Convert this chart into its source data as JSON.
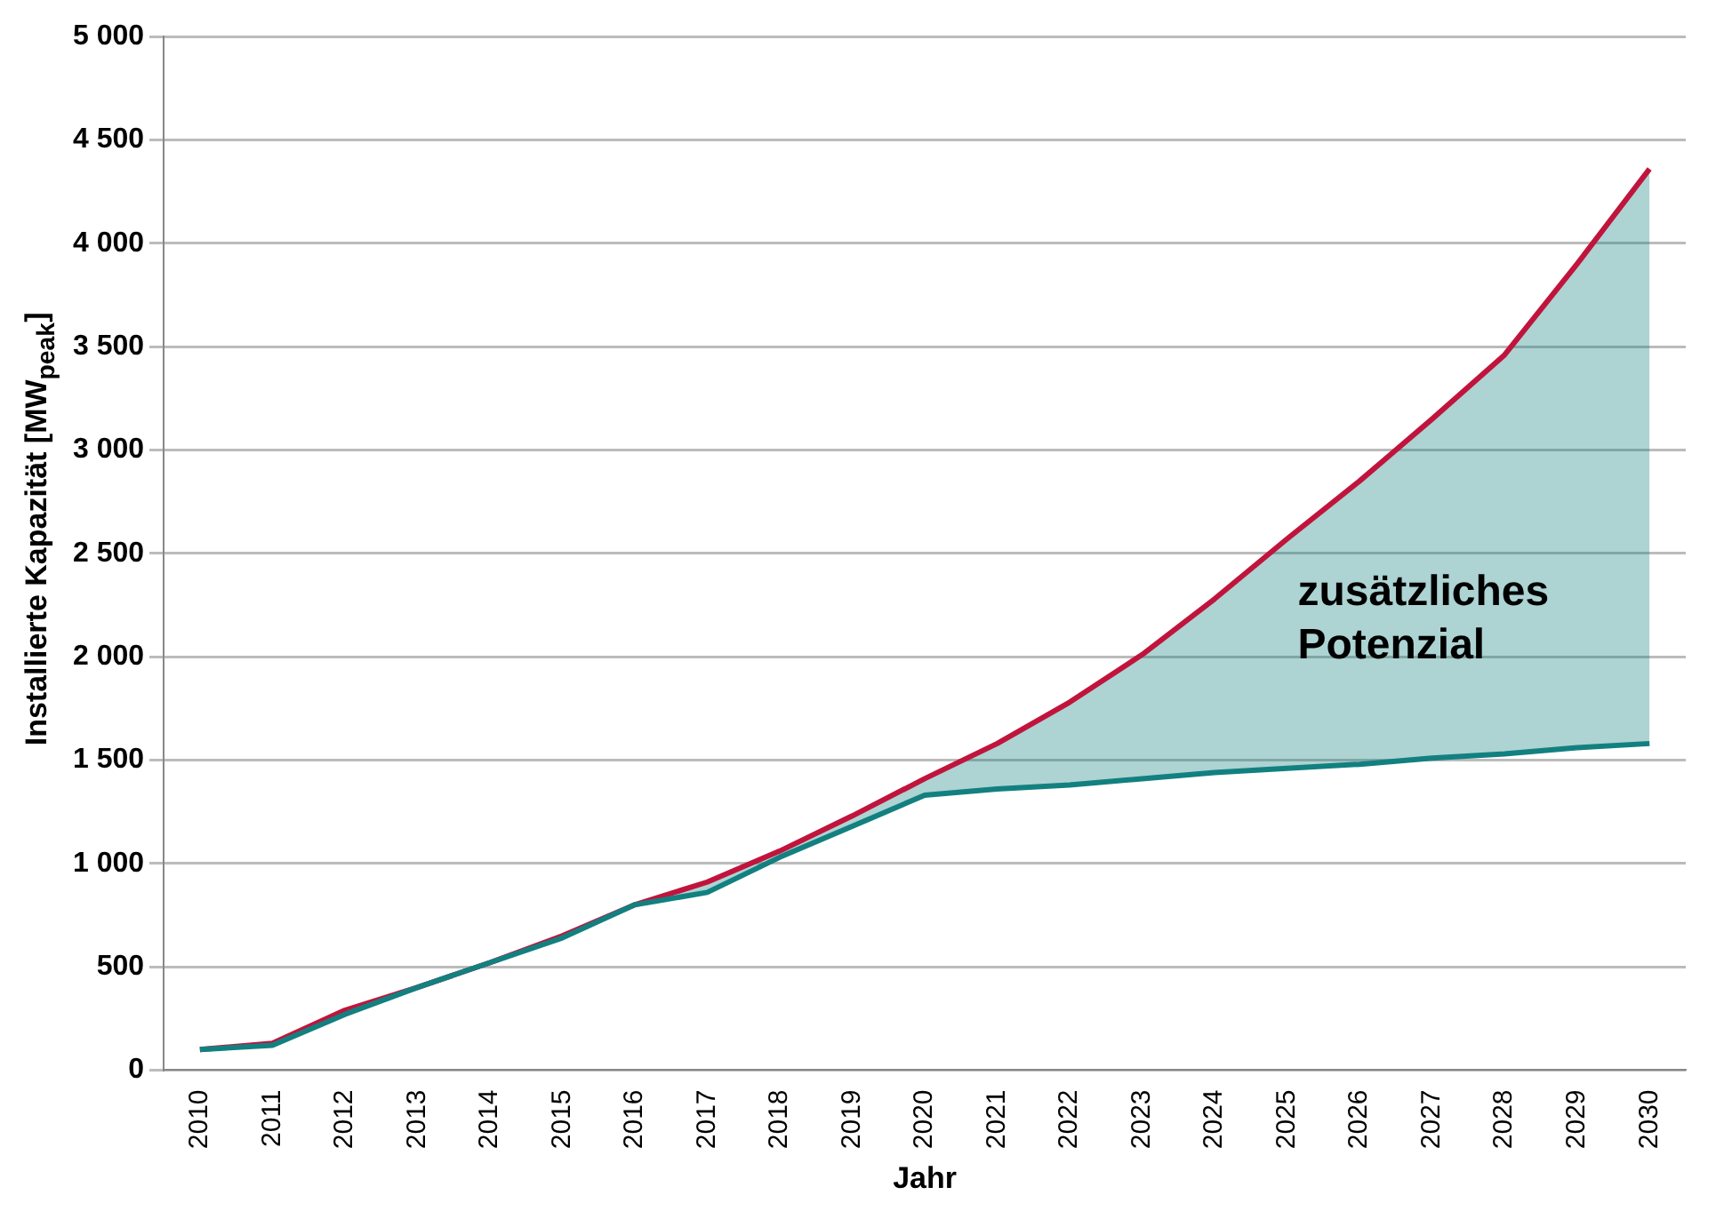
{
  "chart_data": {
    "type": "line",
    "xlabel": "Jahr",
    "ylabel": "Installierte Kapazität [MW$_{peak}$]",
    "categories": [
      "2010",
      "2011",
      "2012",
      "2013",
      "2014",
      "2015",
      "2016",
      "2017",
      "2018",
      "2019",
      "2020",
      "2021",
      "2022",
      "2023",
      "2024",
      "2025",
      "2026",
      "2027",
      "2028",
      "2029",
      "2030"
    ],
    "series": [
      {
        "type": "line",
        "color": "#138080",
        "values": [
          100,
          120,
          270,
          400,
          520,
          640,
          800,
          860,
          1030,
          1180,
          1330,
          1360,
          1380,
          1410,
          1440,
          1460,
          1480,
          1510,
          1530,
          1560,
          1580
        ]
      },
      {
        "color": "#c0143c",
        "values": [
          100,
          130,
          290,
          400,
          520,
          650,
          800,
          910,
          1060,
          1230,
          1410,
          1580,
          1780,
          2010,
          2280,
          2570,
          2850,
          3150,
          3460,
          3900,
          4360
        ],
        "lower": [
          100,
          120,
          270,
          400,
          520,
          640,
          800,
          860,
          1030,
          1180,
          1330,
          1360,
          1380,
          1410,
          1440,
          1460,
          1480,
          1510,
          1530,
          1560,
          1580
        ],
        "upper": [
          100,
          130,
          290,
          400,
          520,
          650,
          800,
          910,
          1060,
          1230,
          1410,
          1580,
          1780,
          2010,
          2280,
          2570,
          2850,
          3150,
          3460,
          3900,
          4360
        ]
      }
    ],
    "ylim": [
      0,
      5000
    ],
    "yticks": [
      0,
      500,
      {
        "value": 1000,
        "label": "1 000"
      },
      {
        "value": 1500,
        "label": "1 500"
      },
      {
        "value": 2000,
        "label": "2 000"
      },
      {
        "value": 2500,
        "label": "2 500"
      },
      {
        "value": 3000,
        "label": "3 000"
      },
      {
        "value": 3500,
        "label": "3 500"
      },
      {
        "value": 4000,
        "label": "4 000"
      },
      {
        "value": 4500,
        "label": "4 500"
      },
      {
        "value": 5000,
        "label": "5 000"
      }
    ],
    "grid": "y",
    "annotations": [
      "zusätzliches\nPotenzial"
    ]
  }
}
